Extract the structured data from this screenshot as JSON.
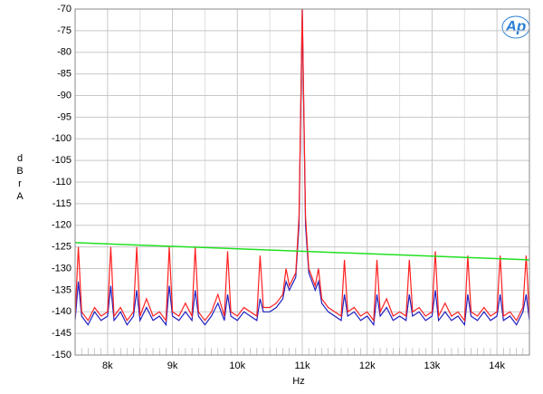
{
  "chart_data": {
    "type": "line",
    "xlabel": "Hz",
    "ylabel": "dBr A",
    "logo": "Ap",
    "xlim": [
      7500,
      14500
    ],
    "xticks": [
      {
        "value": 8000,
        "label": "8k"
      },
      {
        "value": 9000,
        "label": "9k"
      },
      {
        "value": 10000,
        "label": "10k"
      },
      {
        "value": 11000,
        "label": "11k"
      },
      {
        "value": 12000,
        "label": "12k"
      },
      {
        "value": 13000,
        "label": "13k"
      },
      {
        "value": 14000,
        "label": "14k"
      }
    ],
    "ylim": [
      -150,
      -70
    ],
    "yticks": [
      -150,
      -145,
      -140,
      -135,
      -130,
      -125,
      -120,
      -115,
      -110,
      -105,
      -100,
      -95,
      -90,
      -85,
      -80,
      -75,
      -70
    ],
    "grid": true,
    "x": [
      7500,
      7550,
      7600,
      7700,
      7800,
      7900,
      8000,
      8050,
      8100,
      8200,
      8300,
      8400,
      8450,
      8500,
      8600,
      8700,
      8800,
      8900,
      8950,
      9000,
      9100,
      9200,
      9300,
      9350,
      9400,
      9500,
      9600,
      9700,
      9800,
      9850,
      9900,
      10000,
      10100,
      10200,
      10300,
      10350,
      10400,
      10500,
      10600,
      10700,
      10750,
      10800,
      10900,
      10950,
      11000,
      11050,
      11100,
      11200,
      11250,
      11300,
      11400,
      11500,
      11600,
      11650,
      11700,
      11800,
      11900,
      12000,
      12100,
      12150,
      12200,
      12300,
      12400,
      12500,
      12600,
      12650,
      12700,
      12800,
      12900,
      13000,
      13050,
      13100,
      13200,
      13300,
      13400,
      13500,
      13550,
      13600,
      13700,
      13800,
      13900,
      14000,
      14050,
      14100,
      14200,
      14300,
      14400,
      14450,
      14500
    ],
    "series": [
      {
        "color": "#2020c0",
        "values": [
          -142,
          -133,
          -141,
          -143,
          -140,
          -142,
          -141,
          -134,
          -142,
          -140,
          -143,
          -141,
          -135,
          -142,
          -139,
          -142,
          -141,
          -143,
          -134,
          -141,
          -142,
          -140,
          -142,
          -135,
          -141,
          -143,
          -141,
          -138,
          -142,
          -136,
          -141,
          -142,
          -140,
          -141,
          -142,
          -137,
          -140,
          -140,
          -139,
          -137,
          -133,
          -135,
          -132,
          -120,
          -70,
          -120,
          -131,
          -135,
          -133,
          -138,
          -140,
          -141,
          -142,
          -136,
          -141,
          -140,
          -142,
          -141,
          -143,
          -136,
          -141,
          -139,
          -142,
          -141,
          -142,
          -136,
          -141,
          -140,
          -142,
          -141,
          -135,
          -142,
          -140,
          -142,
          -141,
          -143,
          -136,
          -141,
          -142,
          -140,
          -142,
          -141,
          -136,
          -142,
          -141,
          -143,
          -140,
          -136,
          -142
        ]
      },
      {
        "color": "#ff2020",
        "values": [
          -141,
          -125,
          -140,
          -142,
          -139,
          -141,
          -140,
          -125,
          -141,
          -139,
          -142,
          -140,
          -125,
          -141,
          -137,
          -141,
          -140,
          -142,
          -125,
          -140,
          -141,
          -138,
          -141,
          -125,
          -140,
          -142,
          -140,
          -136,
          -141,
          -126,
          -140,
          -141,
          -139,
          -140,
          -141,
          -127,
          -139,
          -139,
          -138,
          -136,
          -130,
          -134,
          -131,
          -118,
          -70,
          -118,
          -130,
          -134,
          -130,
          -137,
          -139,
          -140,
          -141,
          -128,
          -140,
          -139,
          -141,
          -140,
          -142,
          -128,
          -140,
          -137,
          -141,
          -140,
          -141,
          -128,
          -140,
          -139,
          -141,
          -140,
          -126,
          -141,
          -138,
          -141,
          -140,
          -142,
          -127,
          -140,
          -141,
          -139,
          -141,
          -140,
          -127,
          -141,
          -140,
          -142,
          -139,
          -127,
          -141
        ]
      },
      {
        "color": "#20e020",
        "x": [
          7500,
          14500
        ],
        "values": [
          -124,
          -128
        ]
      }
    ]
  }
}
